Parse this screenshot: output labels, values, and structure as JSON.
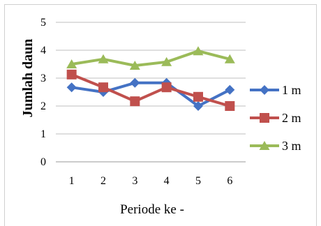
{
  "chart_data": {
    "type": "line",
    "xlabel": "Periode ke -",
    "ylabel": "Jumlah daun",
    "categories": [
      "1",
      "2",
      "3",
      "4",
      "5",
      "6"
    ],
    "ylim": [
      0,
      5
    ],
    "yticks": [
      "0",
      "1",
      "2",
      "3",
      "4",
      "5"
    ],
    "grid": "horizontal",
    "legend_position": "right",
    "series": [
      {
        "name": "1 m",
        "values": [
          2.67,
          2.5,
          2.83,
          2.83,
          2.0,
          2.58
        ],
        "color": "#4472C4",
        "marker": "diamond"
      },
      {
        "name": "2 m",
        "values": [
          3.13,
          2.67,
          2.17,
          2.67,
          2.33,
          2.0
        ],
        "color": "#C0504D",
        "marker": "square"
      },
      {
        "name": "3 m",
        "values": [
          3.5,
          3.68,
          3.45,
          3.58,
          3.97,
          3.68
        ],
        "color": "#9BBB59",
        "marker": "triangle"
      }
    ]
  }
}
